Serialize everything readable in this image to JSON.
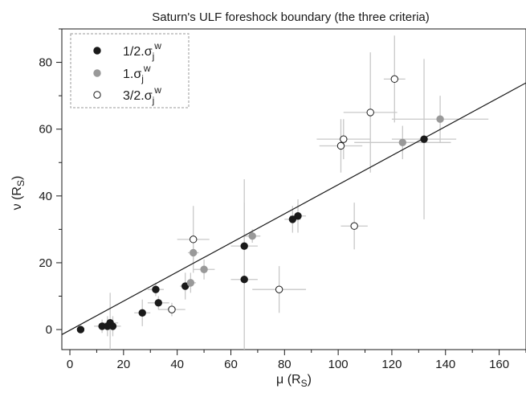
{
  "chart_data": {
    "type": "scatter",
    "title": "Saturn's ULF foreshock boundary (the three criteria)",
    "xlabel": {
      "symbol": "μ",
      "unit_main": "R",
      "unit_sub": "S"
    },
    "ylabel": {
      "symbol": "ν",
      "unit_main": "R",
      "unit_sub": "S"
    },
    "xlim": [
      -3,
      170
    ],
    "ylim": [
      -6,
      90
    ],
    "xticks": [
      0,
      20,
      40,
      60,
      80,
      100,
      120,
      140,
      160
    ],
    "yticks": [
      0,
      20,
      40,
      60,
      80
    ],
    "grid": false,
    "legend_position": "top-left",
    "fit_line": {
      "slope": 0.4356,
      "intercept": -0.2
    },
    "series": [
      {
        "name": {
          "main": "1/2.σ",
          "sub": "j",
          "sup": "w"
        },
        "marker": "filled",
        "color": "#1a1a1a",
        "points": [
          {
            "x": 4,
            "y": 0,
            "xerr": 0,
            "yerr": 0
          },
          {
            "x": 12,
            "y": 1,
            "xerr": 3,
            "yerr": 2
          },
          {
            "x": 14,
            "y": 1,
            "xerr": 4,
            "yerr": 3
          },
          {
            "x": 15,
            "y": 2,
            "xerr": 3,
            "yerr": 9
          },
          {
            "x": 16,
            "y": 1,
            "xerr": 3,
            "yerr": 3
          },
          {
            "x": 27,
            "y": 5,
            "xerr": 3,
            "yerr": 4
          },
          {
            "x": 32,
            "y": 12,
            "xerr": 3,
            "yerr": 2
          },
          {
            "x": 33,
            "y": 8,
            "xerr": 4,
            "yerr": 2
          },
          {
            "x": 43,
            "y": 13,
            "xerr": 2,
            "yerr": 4
          },
          {
            "x": 65,
            "y": 25,
            "xerr": 5,
            "yerr": 13
          },
          {
            "x": 65,
            "y": 15,
            "xerr": 5,
            "yerr": 30
          },
          {
            "x": 83,
            "y": 33,
            "xerr": 3,
            "yerr": 4
          },
          {
            "x": 85,
            "y": 34,
            "xerr": 3,
            "yerr": 5
          },
          {
            "x": 132,
            "y": 57,
            "xerr": 12,
            "yerr": 24
          }
        ]
      },
      {
        "name": {
          "main": "1.σ",
          "sub": "j",
          "sup": "w"
        },
        "marker": "filled",
        "color": "#999999",
        "points": [
          {
            "x": 45,
            "y": 14,
            "xerr": 2,
            "yerr": 3
          },
          {
            "x": 46,
            "y": 23,
            "xerr": 2,
            "yerr": 2
          },
          {
            "x": 50,
            "y": 18,
            "xerr": 4,
            "yerr": 3
          },
          {
            "x": 68,
            "y": 28,
            "xerr": 3,
            "yerr": 2
          },
          {
            "x": 124,
            "y": 56,
            "xerr": 18,
            "yerr": 5
          },
          {
            "x": 138,
            "y": 63,
            "xerr": 18,
            "yerr": 7
          }
        ]
      },
      {
        "name": {
          "main": "3/2.σ",
          "sub": "j",
          "sup": "w"
        },
        "marker": "open",
        "color": "#1a1a1a",
        "points": [
          {
            "x": 38,
            "y": 6,
            "xerr": 5,
            "yerr": 2
          },
          {
            "x": 46,
            "y": 27,
            "xerr": 6,
            "yerr": 10
          },
          {
            "x": 78,
            "y": 12,
            "xerr": 10,
            "yerr": 7
          },
          {
            "x": 101,
            "y": 55,
            "xerr": 8,
            "yerr": 8
          },
          {
            "x": 102,
            "y": 57,
            "xerr": 10,
            "yerr": 6
          },
          {
            "x": 106,
            "y": 31,
            "xerr": 5,
            "yerr": 7
          },
          {
            "x": 112,
            "y": 65,
            "xerr": 10,
            "yerr": 18
          },
          {
            "x": 121,
            "y": 75,
            "xerr": 4,
            "yerr": 13
          }
        ]
      }
    ]
  }
}
